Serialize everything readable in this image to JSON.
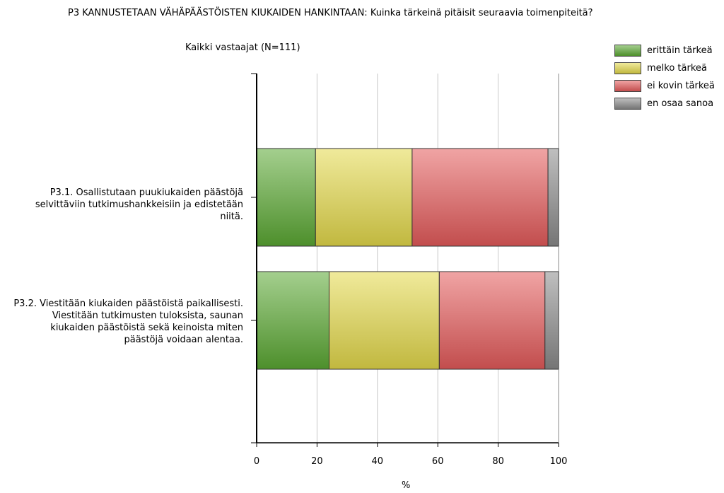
{
  "chart_data": {
    "type": "bar",
    "orientation": "horizontal",
    "stacked": true,
    "title": "P3 KANNUSTETAAN VÄHÄPÄÄSTÖISTEN KIUKAIDEN HANKINTAAN: Kuinka tärkeinä pitäisit seuraavia toimenpiteitä?",
    "subtitle": "Kaikki vastaajat (N=111)",
    "xlabel": "%",
    "ylabel": "",
    "xlim": [
      0,
      100
    ],
    "xticks": [
      "0",
      "20",
      "40",
      "60",
      "80",
      "100"
    ],
    "grid": true,
    "legend_position": "top-right",
    "categories": [
      "P3.1. Osallistutaan puukiukaiden päästöjä selvittäviin tutkimushankkeisiin ja edistetään niitä.",
      "P3.2. Viestitään kiukaiden päästöistä paikallisesti. Viestitään tutkimusten tuloksista, saunan kiukaiden päästöistä sekä keinoista miten päästöjä voidaan alentaa."
    ],
    "series": [
      {
        "name": "erittäin tärkeä",
        "color": "#5aa832",
        "values": [
          19.5,
          24
        ]
      },
      {
        "name": "melko tärkeä",
        "color": "#e3d84a",
        "values": [
          32,
          36.5
        ]
      },
      {
        "name": "ei kovin tärkeä",
        "color": "#e45a5a",
        "values": [
          45,
          35
        ]
      },
      {
        "name": "en osaa sanoa",
        "color": "#8a8a8a",
        "values": [
          3.5,
          4.5
        ]
      }
    ]
  }
}
